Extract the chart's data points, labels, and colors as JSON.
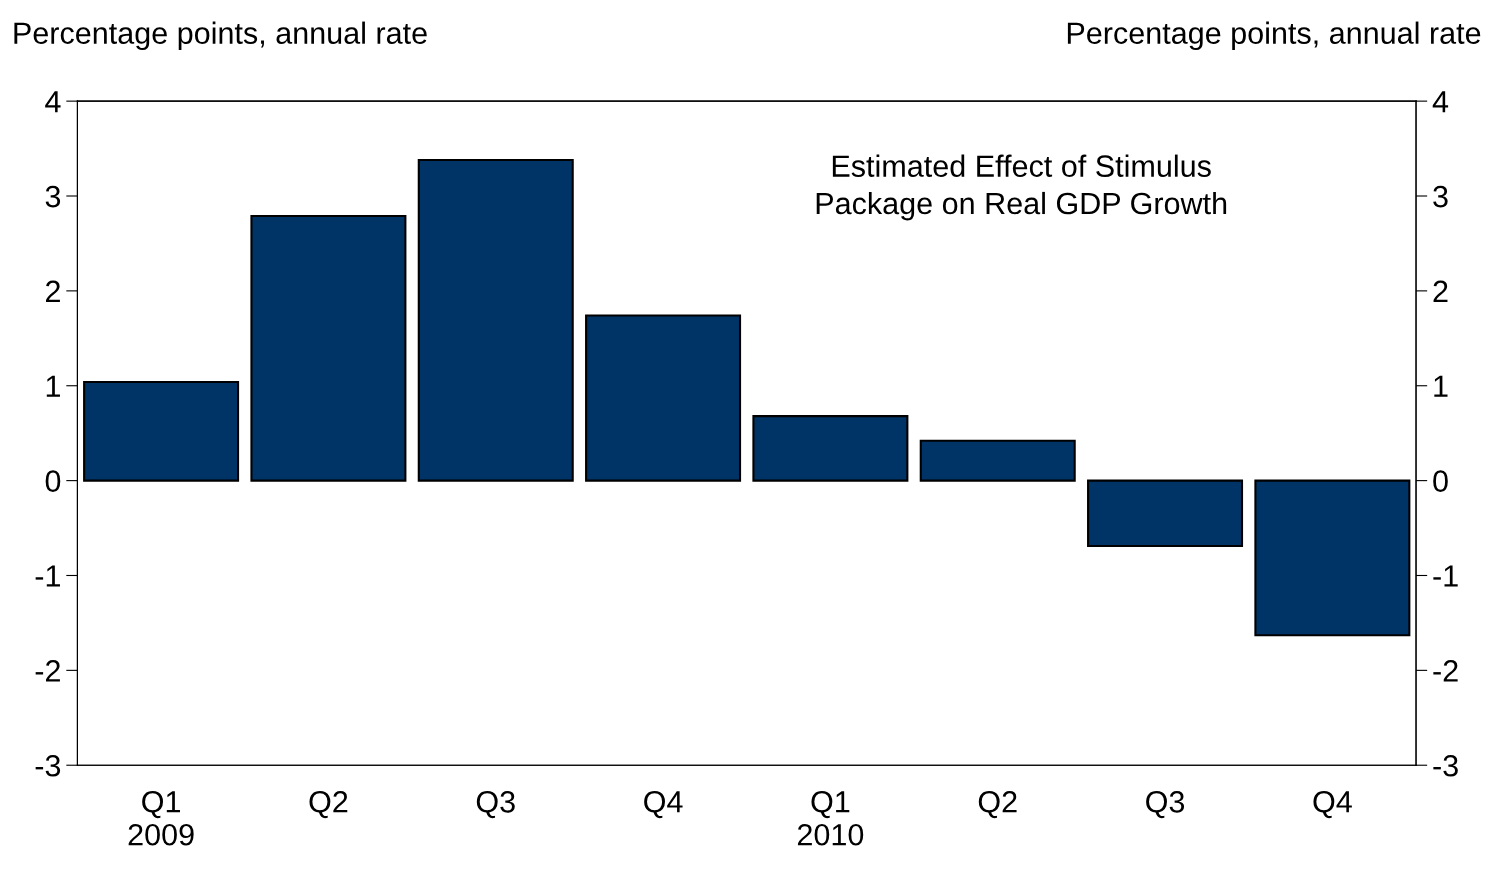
{
  "chart_data": {
    "type": "bar",
    "title": "Estimated Effect of Stimulus\nPackage on Real GDP Growth",
    "ylabel": "Percentage points, annual rate",
    "y2label": "Percentage points, annual rate",
    "categories": [
      "Q1\n2009",
      "Q2",
      "Q3",
      "Q4",
      "Q1\n2010",
      "Q2",
      "Q3",
      "Q4"
    ],
    "values": [
      1.04,
      2.79,
      3.38,
      1.74,
      0.68,
      0.42,
      -0.69,
      -1.63
    ],
    "color": "#003366",
    "ylim": [
      -3,
      4
    ],
    "yticks": [
      -3,
      -2,
      -1,
      0,
      1,
      2,
      3,
      4
    ],
    "y2lim": [
      -3,
      4
    ],
    "y2ticks": [
      -3,
      -2,
      -1,
      0,
      1,
      2,
      3,
      4
    ],
    "legend": false
  }
}
